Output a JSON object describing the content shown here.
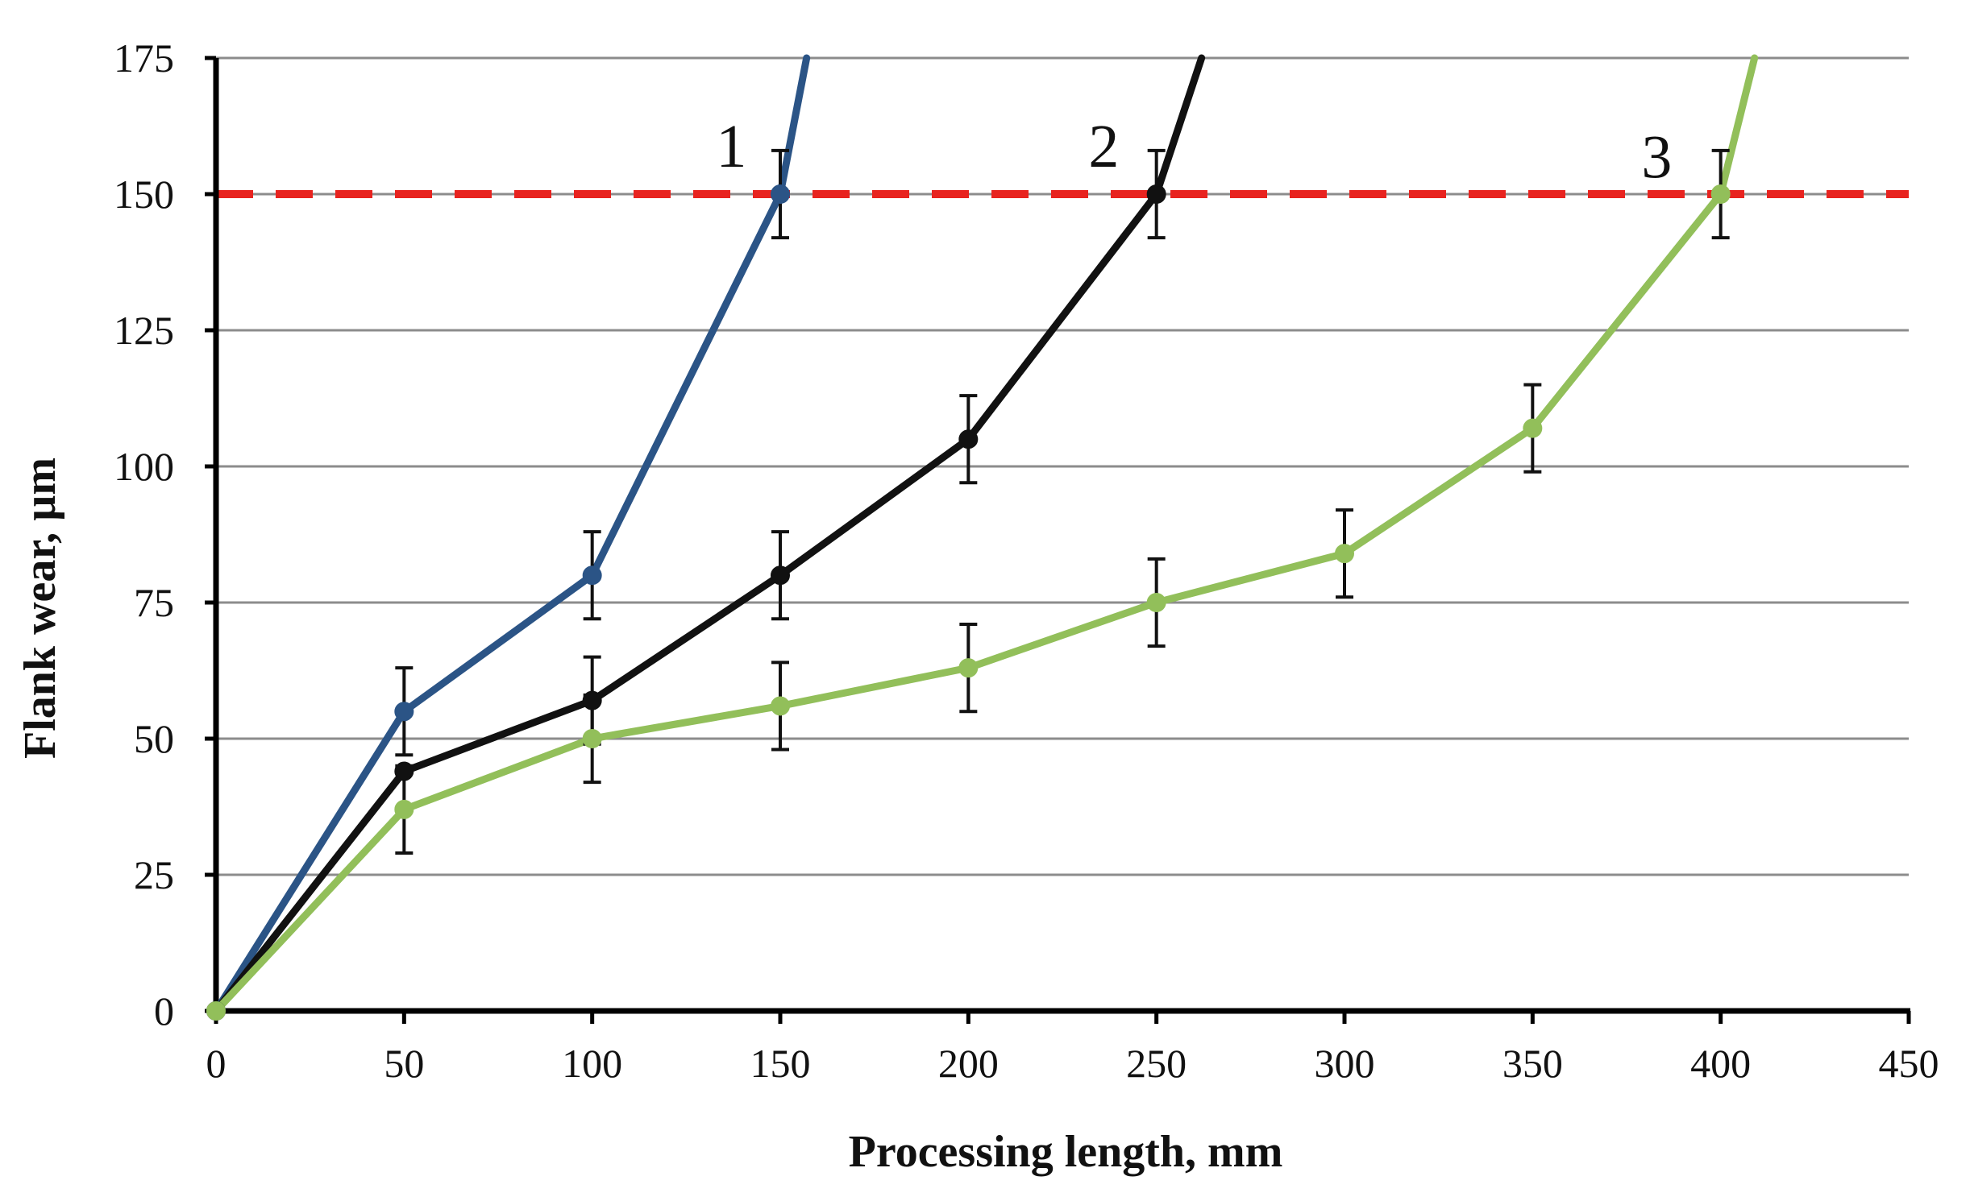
{
  "chart_data": {
    "type": "line",
    "title": "",
    "xlabel": "Processing length, mm",
    "ylabel": "Flank wear, µm",
    "xlim": [
      0,
      450
    ],
    "ylim": [
      0,
      175
    ],
    "x_ticks": [
      0,
      50,
      100,
      150,
      200,
      250,
      300,
      350,
      400,
      450
    ],
    "y_ticks": [
      0,
      25,
      50,
      75,
      100,
      125,
      150,
      175
    ],
    "grid": "horizontal",
    "threshold": {
      "value": 150,
      "color": "#e8231f",
      "style": "dashed"
    },
    "error_bar_half_width": 8,
    "series": [
      {
        "name": "1",
        "color": "#2b5486",
        "x": [
          0,
          50,
          100,
          150
        ],
        "values": [
          0,
          55,
          80,
          150
        ],
        "error_bars_at": [
          50,
          100,
          150
        ],
        "extension": [
          157,
          175
        ]
      },
      {
        "name": "2",
        "color": "#111111",
        "x": [
          0,
          50,
          100,
          150,
          200,
          250
        ],
        "values": [
          0,
          44,
          57,
          80,
          105,
          150
        ],
        "error_bars_at": [
          100,
          150,
          200,
          250
        ],
        "extension": [
          262,
          175
        ]
      },
      {
        "name": "3",
        "color": "#92bf5a",
        "x": [
          0,
          50,
          100,
          150,
          200,
          250,
          300,
          350,
          400
        ],
        "values": [
          0,
          37,
          50,
          56,
          63,
          75,
          84,
          107,
          150
        ],
        "error_bars_at": [
          50,
          100,
          150,
          200,
          250,
          300,
          350,
          400
        ],
        "extension": [
          409,
          175
        ]
      }
    ],
    "annotations": [
      {
        "text": "1",
        "x": 137,
        "y": 155
      },
      {
        "text": "2",
        "x": 236,
        "y": 155
      },
      {
        "text": "3",
        "x": 383,
        "y": 153
      }
    ]
  }
}
